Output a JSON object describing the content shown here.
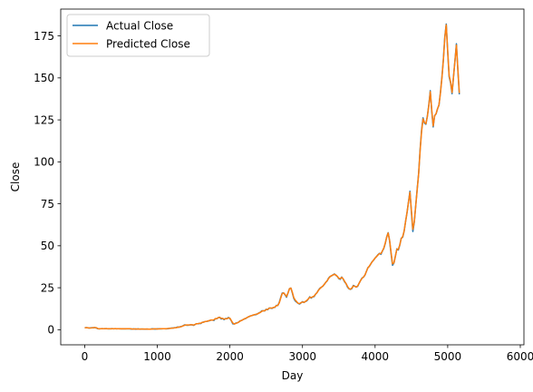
{
  "chart_data": {
    "type": "line",
    "title": "",
    "xlabel": "Day",
    "ylabel": "Close",
    "xlim": [
      -330,
      6050
    ],
    "ylim": [
      -9,
      191
    ],
    "xticks": [
      0,
      1000,
      2000,
      3000,
      4000,
      5000,
      6000
    ],
    "xtick_labels": [
      "0",
      "1000",
      "2000",
      "3000",
      "4000",
      "5000",
      "6000"
    ],
    "yticks": [
      0,
      25,
      50,
      75,
      100,
      125,
      150,
      175
    ],
    "ytick_labels": [
      "0",
      "25",
      "50",
      "75",
      "100",
      "125",
      "150",
      "175"
    ],
    "grid": false,
    "legend_position": "top-left",
    "x_step": 20,
    "series": [
      {
        "name": "Actual Close",
        "color": "#1f77b4",
        "values": [
          1.1,
          1.3,
          1.1,
          1.0,
          1.1,
          1.2,
          1.1,
          1.3,
          1.0,
          0.6,
          0.5,
          0.6,
          0.7,
          0.6,
          0.6,
          0.7,
          0.5,
          0.5,
          0.6,
          0.7,
          0.5,
          0.7,
          0.5,
          0.6,
          0.6,
          0.5,
          0.5,
          0.6,
          0.5,
          0.6,
          0.5,
          0.5,
          0.4,
          0.4,
          0.5,
          0.3,
          0.4,
          0.5,
          0.3,
          0.4,
          0.4,
          0.3,
          0.3,
          0.4,
          0.3,
          0.3,
          0.5,
          0.5,
          0.4,
          0.4,
          0.5,
          0.5,
          0.6,
          0.5,
          0.6,
          0.6,
          0.5,
          0.6,
          0.7,
          0.9,
          1.0,
          1.0,
          1.2,
          1.3,
          1.6,
          1.5,
          1.8,
          2.0,
          2.5,
          2.9,
          2.7,
          2.6,
          2.8,
          2.9,
          2.9,
          2.6,
          3.1,
          3.6,
          3.5,
          3.8,
          3.7,
          4.4,
          4.6,
          4.9,
          4.9,
          5.2,
          5.4,
          5.7,
          5.7,
          5.5,
          6.6,
          6.5,
          7.2,
          7.4,
          6.4,
          6.7,
          6.0,
          6.7,
          6.6,
          7.3,
          6.6,
          5.3,
          3.5,
          3.4,
          3.9,
          4.1,
          4.5,
          5.3,
          5.5,
          6.0,
          6.4,
          6.7,
          7.4,
          7.7,
          8.2,
          8.4,
          8.7,
          8.9,
          9.0,
          9.5,
          10.0,
          10.4,
          11.3,
          11.3,
          11.2,
          12.2,
          11.9,
          12.9,
          12.9,
          12.7,
          13.2,
          13.3,
          14.5,
          14.4,
          16.3,
          19.2,
          21.8,
          21.9,
          20.8,
          19.3,
          21.9,
          24.4,
          24.8,
          21.9,
          18.7,
          17.1,
          16.4,
          15.7,
          15.3,
          16.0,
          16.7,
          16.2,
          16.8,
          17.2,
          18.3,
          19.6,
          18.8,
          19.6,
          19.7,
          21.2,
          22.1,
          23.6,
          24.7,
          25.3,
          25.9,
          27.0,
          28.2,
          29.1,
          30.8,
          31.7,
          32.1,
          32.7,
          33.2,
          32.4,
          31.7,
          30.4,
          30.0,
          31.4,
          30.2,
          28.5,
          27.4,
          25.4,
          24.4,
          24.0,
          24.5,
          26.4,
          25.9,
          25.4,
          25.8,
          27.7,
          29.3,
          30.8,
          31.3,
          32.5,
          34.7,
          36.9,
          37.7,
          39.1,
          40.6,
          41.4,
          42.7,
          43.6,
          44.7,
          45.5,
          44.9,
          46.8,
          48.5,
          51.4,
          55.3,
          57.8,
          52.9,
          45.4,
          38.4,
          39.8,
          43.9,
          48.2,
          47.5,
          50.4,
          54.5,
          55.1,
          58.7,
          64.6,
          69.8,
          76.2,
          82.5,
          70.1,
          58.5,
          64.2,
          74.2,
          84.0,
          93.2,
          107.4,
          118.7,
          126.2,
          123.1,
          122.4,
          127.3,
          134.0,
          142.4,
          130.2,
          120.8,
          127.5,
          128.6,
          131.6,
          133.8,
          141.4,
          150.2,
          160.9,
          174.5,
          182.1,
          165.3,
          150.6,
          147.0,
          140.6,
          150.8,
          160.4,
          170.3,
          154.6,
          140.2
        ]
      },
      {
        "name": "Predicted Close",
        "color": "#ff7f0e",
        "values": [
          1.1,
          1.2,
          1.2,
          1.0,
          1.0,
          1.1,
          1.3,
          1.2,
          1.2,
          0.7,
          0.5,
          0.6,
          0.6,
          0.6,
          0.7,
          0.6,
          0.6,
          0.6,
          0.5,
          0.6,
          0.6,
          0.6,
          0.6,
          0.6,
          0.5,
          0.6,
          0.5,
          0.6,
          0.5,
          0.6,
          0.6,
          0.6,
          0.5,
          0.4,
          0.4,
          0.5,
          0.4,
          0.4,
          0.4,
          0.4,
          0.4,
          0.4,
          0.4,
          0.4,
          0.3,
          0.3,
          0.4,
          0.4,
          0.5,
          0.5,
          0.4,
          0.5,
          0.5,
          0.6,
          0.6,
          0.6,
          0.6,
          0.7,
          0.8,
          0.8,
          0.9,
          1.0,
          1.1,
          1.2,
          1.4,
          1.6,
          1.7,
          2.0,
          2.4,
          2.7,
          2.8,
          2.8,
          2.8,
          3.0,
          2.9,
          2.8,
          3.1,
          3.6,
          3.6,
          3.8,
          3.9,
          4.4,
          4.5,
          4.9,
          5.0,
          5.2,
          5.5,
          5.8,
          5.7,
          5.9,
          6.6,
          6.6,
          7.2,
          7.3,
          6.8,
          6.7,
          6.3,
          6.5,
          6.6,
          7.0,
          6.9,
          5.4,
          4.0,
          3.4,
          3.7,
          4.1,
          4.5,
          5.1,
          5.5,
          6.0,
          6.5,
          6.8,
          7.3,
          7.8,
          8.1,
          8.4,
          8.7,
          9.0,
          9.2,
          9.4,
          9.9,
          10.3,
          11.0,
          11.3,
          11.3,
          12.0,
          12.1,
          12.8,
          12.9,
          12.9,
          13.2,
          13.5,
          14.3,
          14.5,
          16.0,
          18.8,
          21.5,
          21.9,
          21.0,
          19.7,
          21.8,
          24.4,
          24.8,
          22.3,
          19.1,
          17.6,
          16.7,
          15.7,
          15.6,
          16.1,
          16.5,
          16.3,
          16.8,
          17.5,
          18.3,
          19.4,
          19.1,
          19.6,
          20.0,
          21.2,
          22.1,
          23.5,
          24.5,
          25.3,
          26.0,
          27.0,
          28.2,
          29.2,
          30.6,
          31.6,
          32.2,
          32.6,
          33.0,
          32.6,
          31.8,
          30.6,
          30.4,
          31.2,
          30.3,
          28.8,
          27.5,
          25.8,
          24.5,
          24.1,
          24.8,
          26.1,
          25.8,
          25.4,
          26.1,
          27.7,
          29.3,
          30.6,
          31.4,
          32.6,
          34.7,
          36.8,
          37.8,
          39.2,
          40.4,
          41.6,
          42.7,
          43.6,
          44.5,
          45.4,
          45.3,
          46.9,
          48.6,
          51.6,
          55.2,
          57.6,
          53.1,
          46.0,
          39.2,
          39.9,
          43.9,
          48.0,
          47.9,
          50.5,
          54.3,
          55.5,
          58.8,
          64.5,
          69.9,
          76.0,
          81.9,
          71.0,
          59.8,
          64.4,
          74.0,
          83.5,
          93.0,
          106.7,
          118.0,
          125.6,
          123.5,
          122.7,
          127.1,
          133.5,
          141.8,
          131.1,
          121.4,
          127.4,
          128.7,
          131.6,
          134.0,
          141.0,
          149.8,
          160.4,
          173.9,
          181.6,
          166.1,
          151.3,
          147.6,
          141.3,
          150.6,
          160.1,
          169.6,
          155.3,
          141.0
        ]
      }
    ]
  }
}
